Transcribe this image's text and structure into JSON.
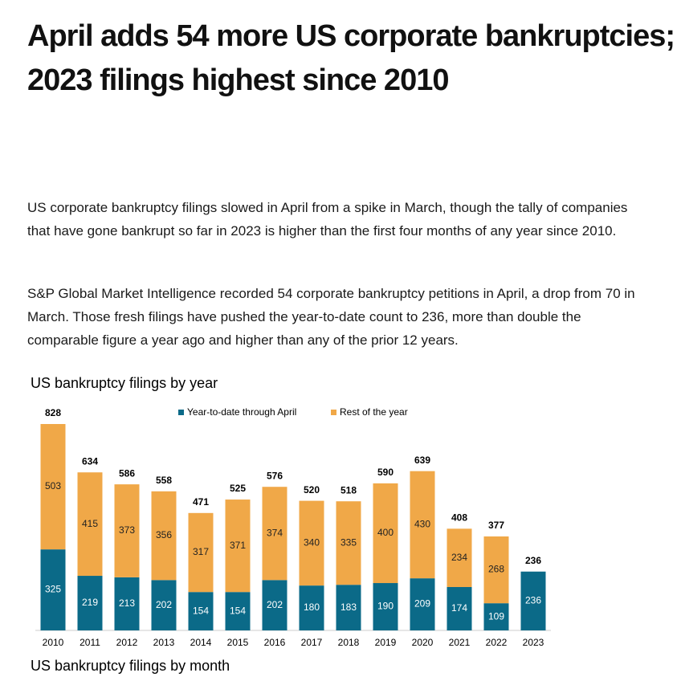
{
  "header": {
    "title": "April adds 54 more US corporate bankruptcies; 2023 filings highest since 2010"
  },
  "paragraphs": [
    "US corporate bankruptcy filings slowed in April from a spike in March, though the tally of companies that have gone bankrupt so far in 2023 is higher than the first four months of any year since 2010.",
    "S&P Global Market Intelligence recorded 54 corporate bankruptcy petitions in April, a drop from 70 in March. Those fresh filings have pushed the year-to-date count to 236, more than double the comparable figure a year ago and higher than any of the prior 12 years."
  ],
  "chart_data": {
    "type": "stacked-bar",
    "title": "US bankruptcy filings by year",
    "categories": [
      "2010",
      "2011",
      "2012",
      "2013",
      "2014",
      "2015",
      "2016",
      "2017",
      "2018",
      "2019",
      "2020",
      "2021",
      "2022",
      "2023"
    ],
    "series": [
      {
        "name": "Year-to-date through April",
        "color": "#0b6a88",
        "values": [
          325,
          219,
          213,
          202,
          154,
          154,
          202,
          180,
          183,
          190,
          209,
          174,
          109,
          236
        ]
      },
      {
        "name": "Rest of the year",
        "color": "#f0a848",
        "values": [
          503,
          415,
          373,
          356,
          317,
          371,
          374,
          340,
          335,
          400,
          430,
          234,
          268,
          null
        ]
      }
    ],
    "total_labels": [
      828,
      634,
      586,
      558,
      471,
      525,
      576,
      520,
      518,
      590,
      639,
      408,
      377,
      236
    ]
  },
  "next_section": {
    "title": "US bankruptcy filings by month"
  }
}
